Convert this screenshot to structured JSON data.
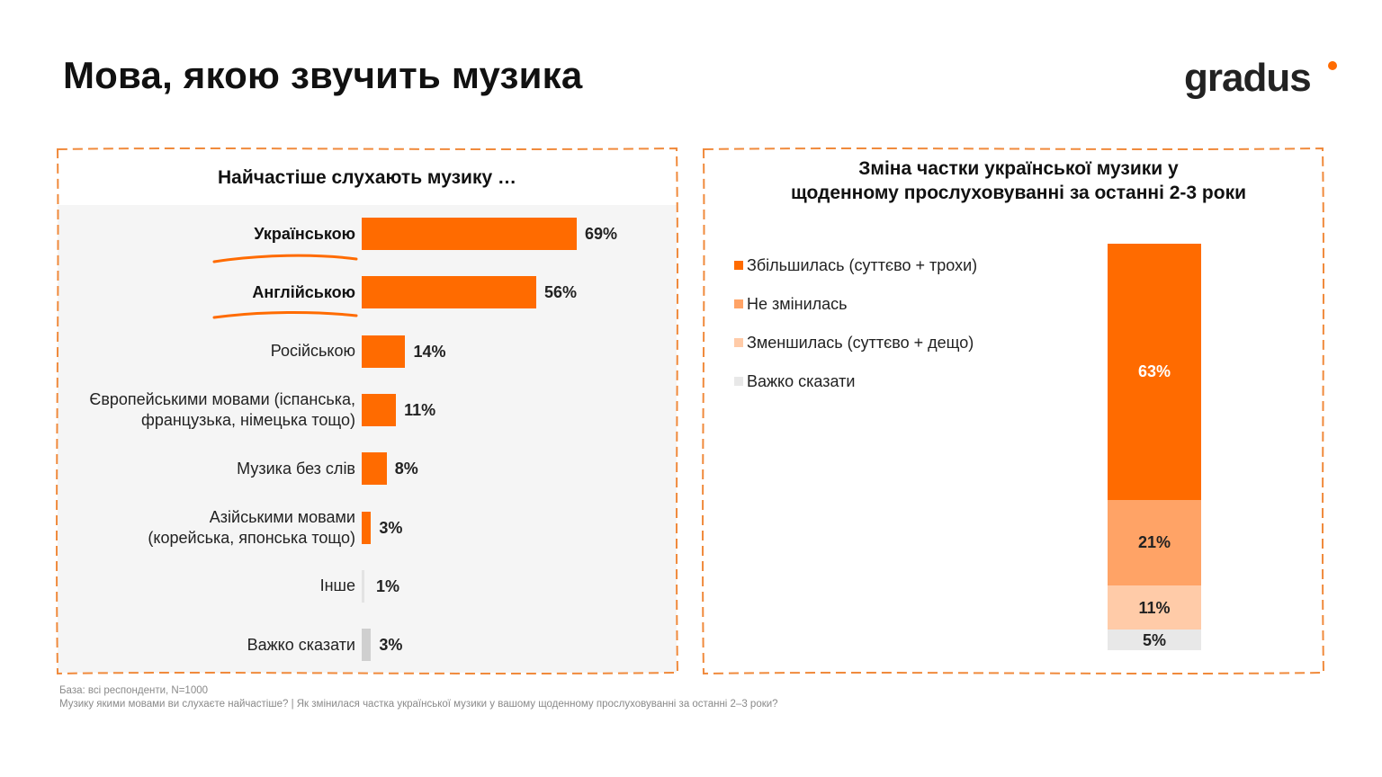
{
  "page": {
    "title": "Мова, якою звучить музика",
    "logo_text": "gradus",
    "accent_color": "#FF6B00"
  },
  "chart_data": [
    {
      "type": "bar",
      "orientation": "horizontal",
      "title": "Найчастіше слухають музику …",
      "unit": "%",
      "xlim": [
        0,
        69
      ],
      "categories": [
        "Українською",
        "Англійською",
        "Російською",
        "Європейськими мовами (іспанська, французька, німецька тощо)",
        "Музика без слів",
        "Азійськими мовами (корейська, японська тощо)",
        "Інше",
        "Важко сказати"
      ],
      "category_lines": [
        [
          "Українською"
        ],
        [
          "Англійською"
        ],
        [
          "Російською"
        ],
        [
          "Європейськими мовами (іспанська,",
          "французька, німецька тощо)"
        ],
        [
          "Музика без слів"
        ],
        [
          "Азійськими мовами",
          "(корейська, японська тощо)"
        ],
        [
          "Інше"
        ],
        [
          "Важко сказати"
        ]
      ],
      "values": [
        69,
        56,
        14,
        11,
        8,
        3,
        1,
        3
      ],
      "value_labels": [
        "69%",
        "56%",
        "14%",
        "11%",
        "8%",
        "3%",
        "1%",
        "3%"
      ],
      "highlighted": [
        true,
        true,
        false,
        false,
        false,
        false,
        false,
        false
      ],
      "colors": [
        "#FF6B00",
        "#FF6B00",
        "#FF6B00",
        "#FF6B00",
        "#FF6B00",
        "#FF6B00",
        "#E3E3E3",
        "#CFCFCF"
      ],
      "grid": false,
      "legend": "none"
    },
    {
      "type": "bar",
      "orientation": "vertical",
      "stacked": true,
      "title": "Зміна частки української музики у щоденному прослуховуванні за останні 2-3 роки",
      "title_lines": [
        "Зміна частки української музики у",
        "щоденному прослуховуванні за останні 2-3 роки"
      ],
      "unit": "%",
      "ylim": [
        0,
        100
      ],
      "legend": "left",
      "series": [
        {
          "name": "Збільшилась (суттєво + трохи)",
          "value": 63,
          "value_label": "63%",
          "color": "#FF6B00",
          "label_color": "#FFFFFF"
        },
        {
          "name": "Не змінилась",
          "value": 21,
          "value_label": "21%",
          "color": "#FFA366",
          "label_color": "#222222"
        },
        {
          "name": "Зменшилась (суттєво + дещо)",
          "value": 11,
          "value_label": "11%",
          "color": "#FFCBA8",
          "label_color": "#222222"
        },
        {
          "name": "Важко сказати",
          "value": 5,
          "value_label": "5%",
          "color": "#E8E8E8",
          "label_color": "#222222"
        }
      ]
    }
  ],
  "footnotes": [
    "База: всі респонденти, N=1000",
    "Музику якими мовами ви слухаєте найчастіше? | Як змінилася частка української музики у вашому щоденному прослуховуванні за останні 2–3 роки?"
  ]
}
